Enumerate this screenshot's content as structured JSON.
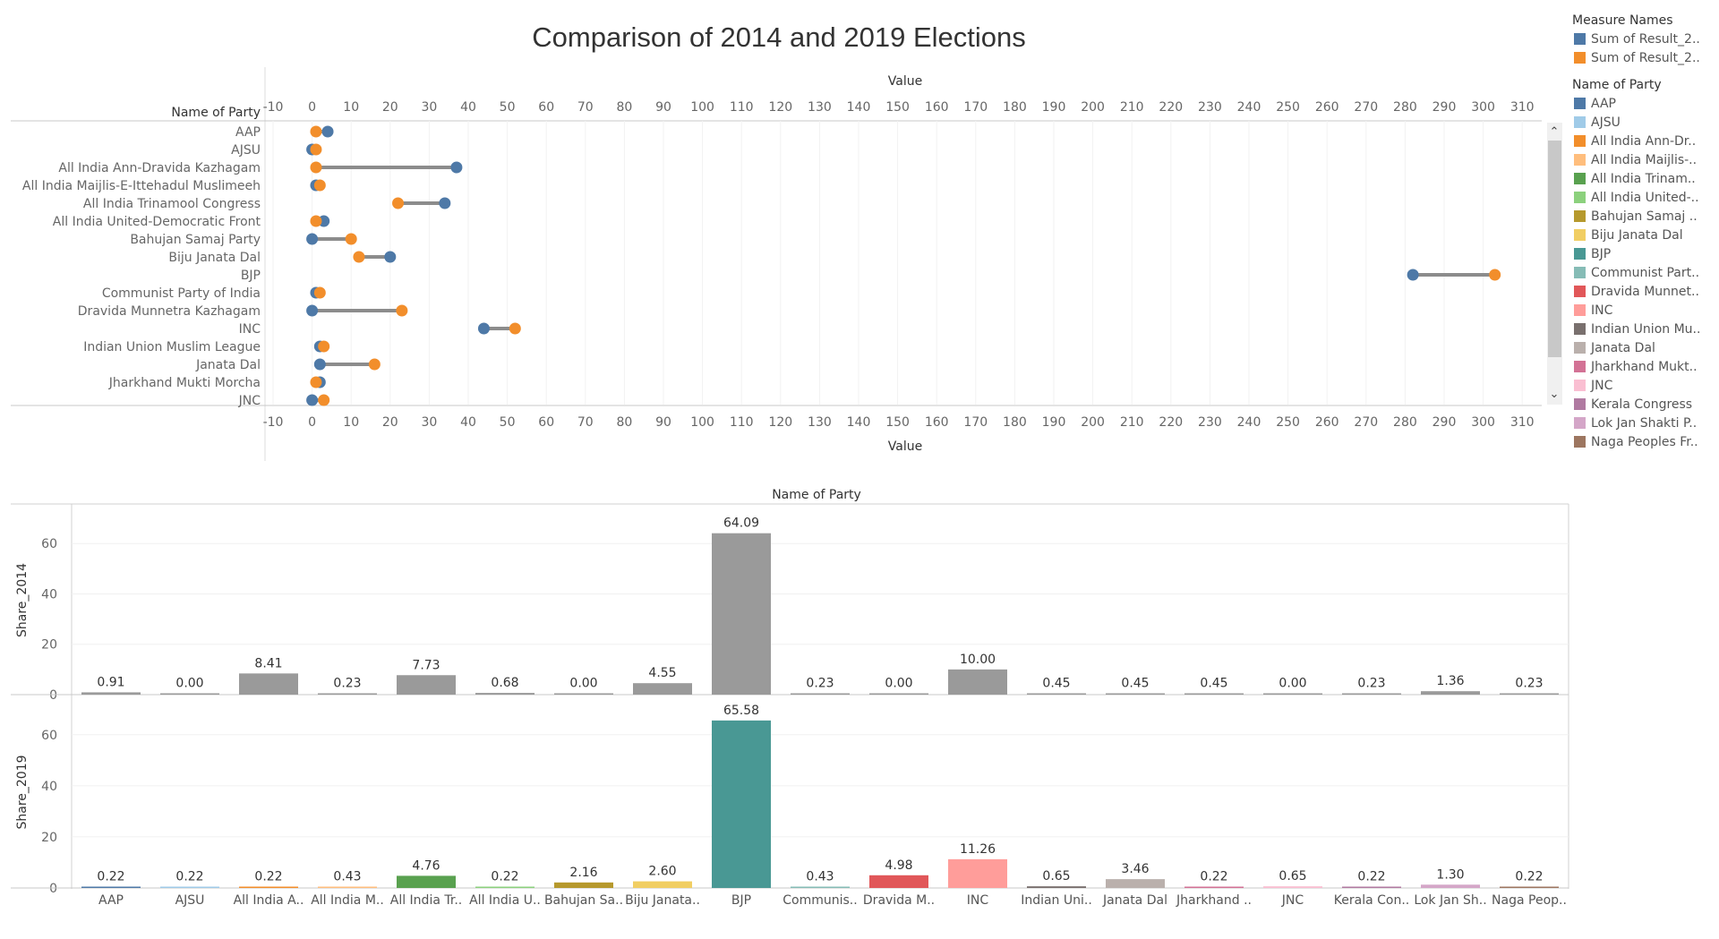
{
  "title": "Comparison of 2014 and 2019 Elections",
  "legend": {
    "measure_title": "Measure Names",
    "measures": [
      {
        "label": "Sum of Result_2..",
        "color": "#4E79A7"
      },
      {
        "label": "Sum of Result_2..",
        "color": "#F28E2B"
      }
    ],
    "party_title": "Name of Party",
    "parties": [
      {
        "label": "AAP",
        "color": "#4E79A7"
      },
      {
        "label": "AJSU",
        "color": "#A0CBE8"
      },
      {
        "label": "All India Ann-Dr..",
        "color": "#F28E2B"
      },
      {
        "label": "All India Maijlis-..",
        "color": "#FFBE7D"
      },
      {
        "label": "All India Trinam..",
        "color": "#59A14F"
      },
      {
        "label": "All India United-..",
        "color": "#8CD17D"
      },
      {
        "label": "Bahujan Samaj ..",
        "color": "#B6992D"
      },
      {
        "label": "Biju Janata Dal",
        "color": "#F1CE63"
      },
      {
        "label": "BJP",
        "color": "#499894"
      },
      {
        "label": "Communist Part..",
        "color": "#86BCB6"
      },
      {
        "label": "Dravida Munnet..",
        "color": "#E15759"
      },
      {
        "label": "INC",
        "color": "#FF9D9A"
      },
      {
        "label": "Indian Union Mu..",
        "color": "#79706E"
      },
      {
        "label": "Janata Dal",
        "color": "#BAB0AC"
      },
      {
        "label": "Jharkhand Mukt..",
        "color": "#D37295"
      },
      {
        "label": "JNC",
        "color": "#FABFD2"
      },
      {
        "label": "Kerala Congress",
        "color": "#B07AA1"
      },
      {
        "label": "Lok Jan Shakti P..",
        "color": "#D4A6C8"
      },
      {
        "label": "Naga Peoples Fr..",
        "color": "#9D7660"
      }
    ]
  },
  "chart_data": [
    {
      "type": "scatter",
      "subtype": "dumbbell",
      "row_header": "Name of Party",
      "xlabel": "Value",
      "xlim": [
        -10,
        315
      ],
      "xticks": [
        -10,
        0,
        10,
        20,
        30,
        40,
        50,
        60,
        70,
        80,
        90,
        100,
        110,
        120,
        130,
        140,
        150,
        160,
        170,
        180,
        190,
        200,
        210,
        220,
        230,
        240,
        250,
        260,
        270,
        280,
        290,
        300,
        310
      ],
      "series": [
        {
          "name": "Sum of Result_2..",
          "color": "#4E79A7"
        },
        {
          "name": "Sum of Result_2..",
          "color": "#F28E2B"
        }
      ],
      "rows": [
        {
          "party": "AAP",
          "blue": 4,
          "orange": 1
        },
        {
          "party": "AJSU",
          "blue": 0,
          "orange": 1
        },
        {
          "party": "All India Ann-Dravida Kazhagam",
          "blue": 37,
          "orange": 1
        },
        {
          "party": "All India Maijlis-E-Ittehadul Muslimeeh",
          "blue": 1,
          "orange": 2
        },
        {
          "party": "All India Trinamool Congress",
          "blue": 34,
          "orange": 22
        },
        {
          "party": "All India United-Democratic Front",
          "blue": 3,
          "orange": 1
        },
        {
          "party": "Bahujan Samaj Party",
          "blue": 0,
          "orange": 10
        },
        {
          "party": "Biju Janata Dal",
          "blue": 20,
          "orange": 12
        },
        {
          "party": "BJP",
          "blue": 282,
          "orange": 303
        },
        {
          "party": "Communist Party of India",
          "blue": 1,
          "orange": 2
        },
        {
          "party": "Dravida Munnetra Kazhagam",
          "blue": 0,
          "orange": 23
        },
        {
          "party": "INC",
          "blue": 44,
          "orange": 52
        },
        {
          "party": "Indian Union Muslim League",
          "blue": 2,
          "orange": 3
        },
        {
          "party": "Janata Dal",
          "blue": 2,
          "orange": 16
        },
        {
          "party": "Jharkhand Mukti Morcha",
          "blue": 2,
          "orange": 1
        },
        {
          "party": "JNC",
          "blue": 0,
          "orange": 3
        }
      ]
    },
    {
      "type": "bar",
      "header": "Name of Party",
      "categories": [
        "AAP",
        "AJSU",
        "All India A..",
        "All India M..",
        "All India Tr..",
        "All India U..",
        "Bahujan Sa..",
        "Biju Janata..",
        "BJP",
        "Communis..",
        "Dravida M..",
        "INC",
        "Indian Uni..",
        "Janata Dal",
        "Jharkhand ..",
        "JNC",
        "Kerala Con..",
        "Lok Jan Sh..",
        "Naga Peop.."
      ],
      "colors": [
        "#4E79A7",
        "#A0CBE8",
        "#F28E2B",
        "#FFBE7D",
        "#59A14F",
        "#8CD17D",
        "#B6992D",
        "#F1CE63",
        "#499894",
        "#86BCB6",
        "#E15759",
        "#FF9D9A",
        "#79706E",
        "#BAB0AC",
        "#D37295",
        "#FABFD2",
        "#B07AA1",
        "#D4A6C8",
        "#9D7660"
      ],
      "ylim": [
        0,
        75
      ],
      "yticks": [
        0,
        20,
        40,
        60
      ],
      "series": [
        {
          "name": "Share_2014",
          "color": "#9A9A9A",
          "values": [
            0.91,
            0.0,
            8.41,
            0.23,
            7.73,
            0.68,
            0.0,
            4.55,
            64.09,
            0.23,
            0.0,
            10.0,
            0.45,
            0.45,
            0.45,
            0.0,
            0.23,
            1.36,
            0.23
          ],
          "labels": [
            "0.91",
            "0.00",
            "8.41",
            "0.23",
            "7.73",
            "0.68",
            "0.00",
            "4.55",
            "64.09",
            "0.23",
            "0.00",
            "10.00",
            "0.45",
            "0.45",
            "0.45",
            "0.00",
            "0.23",
            "1.36",
            "0.23"
          ]
        },
        {
          "name": "Share_2019",
          "color": null,
          "values": [
            0.22,
            0.22,
            0.22,
            0.43,
            4.76,
            0.22,
            2.16,
            2.6,
            65.58,
            0.43,
            4.98,
            11.26,
            0.65,
            3.46,
            0.22,
            0.65,
            0.22,
            1.3,
            0.22
          ],
          "labels": [
            "0.22",
            "0.22",
            "0.22",
            "0.43",
            "4.76",
            "0.22",
            "2.16",
            "2.60",
            "65.58",
            "0.43",
            "4.98",
            "11.26",
            "0.65",
            "3.46",
            "0.22",
            "0.65",
            "0.22",
            "1.30",
            "0.22"
          ]
        }
      ]
    }
  ]
}
